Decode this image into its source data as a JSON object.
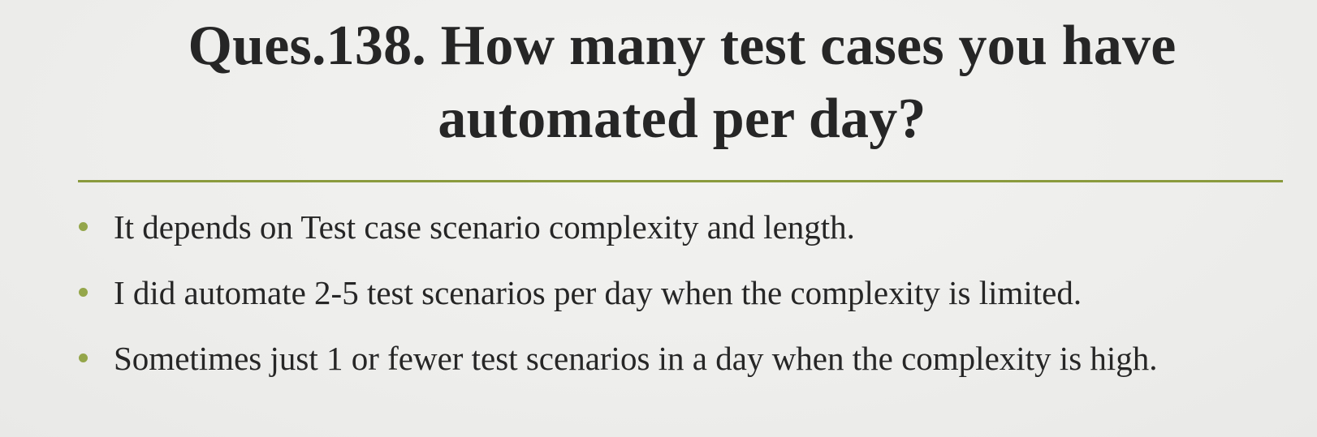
{
  "slide": {
    "title_lines": [
      "Ques.138. How many test cases you have",
      "automated per day?"
    ],
    "bullets": [
      "It depends on Test case scenario complexity and length.",
      "I did automate 2-5 test scenarios per day when the complexity is limited.",
      "Sometimes just 1 or fewer test scenarios in a day when the complexity is high."
    ],
    "accent_color": "#8a9a3d",
    "bullet_color": "#94a64a",
    "text_color": "#262626",
    "background_color": "#efefed"
  }
}
